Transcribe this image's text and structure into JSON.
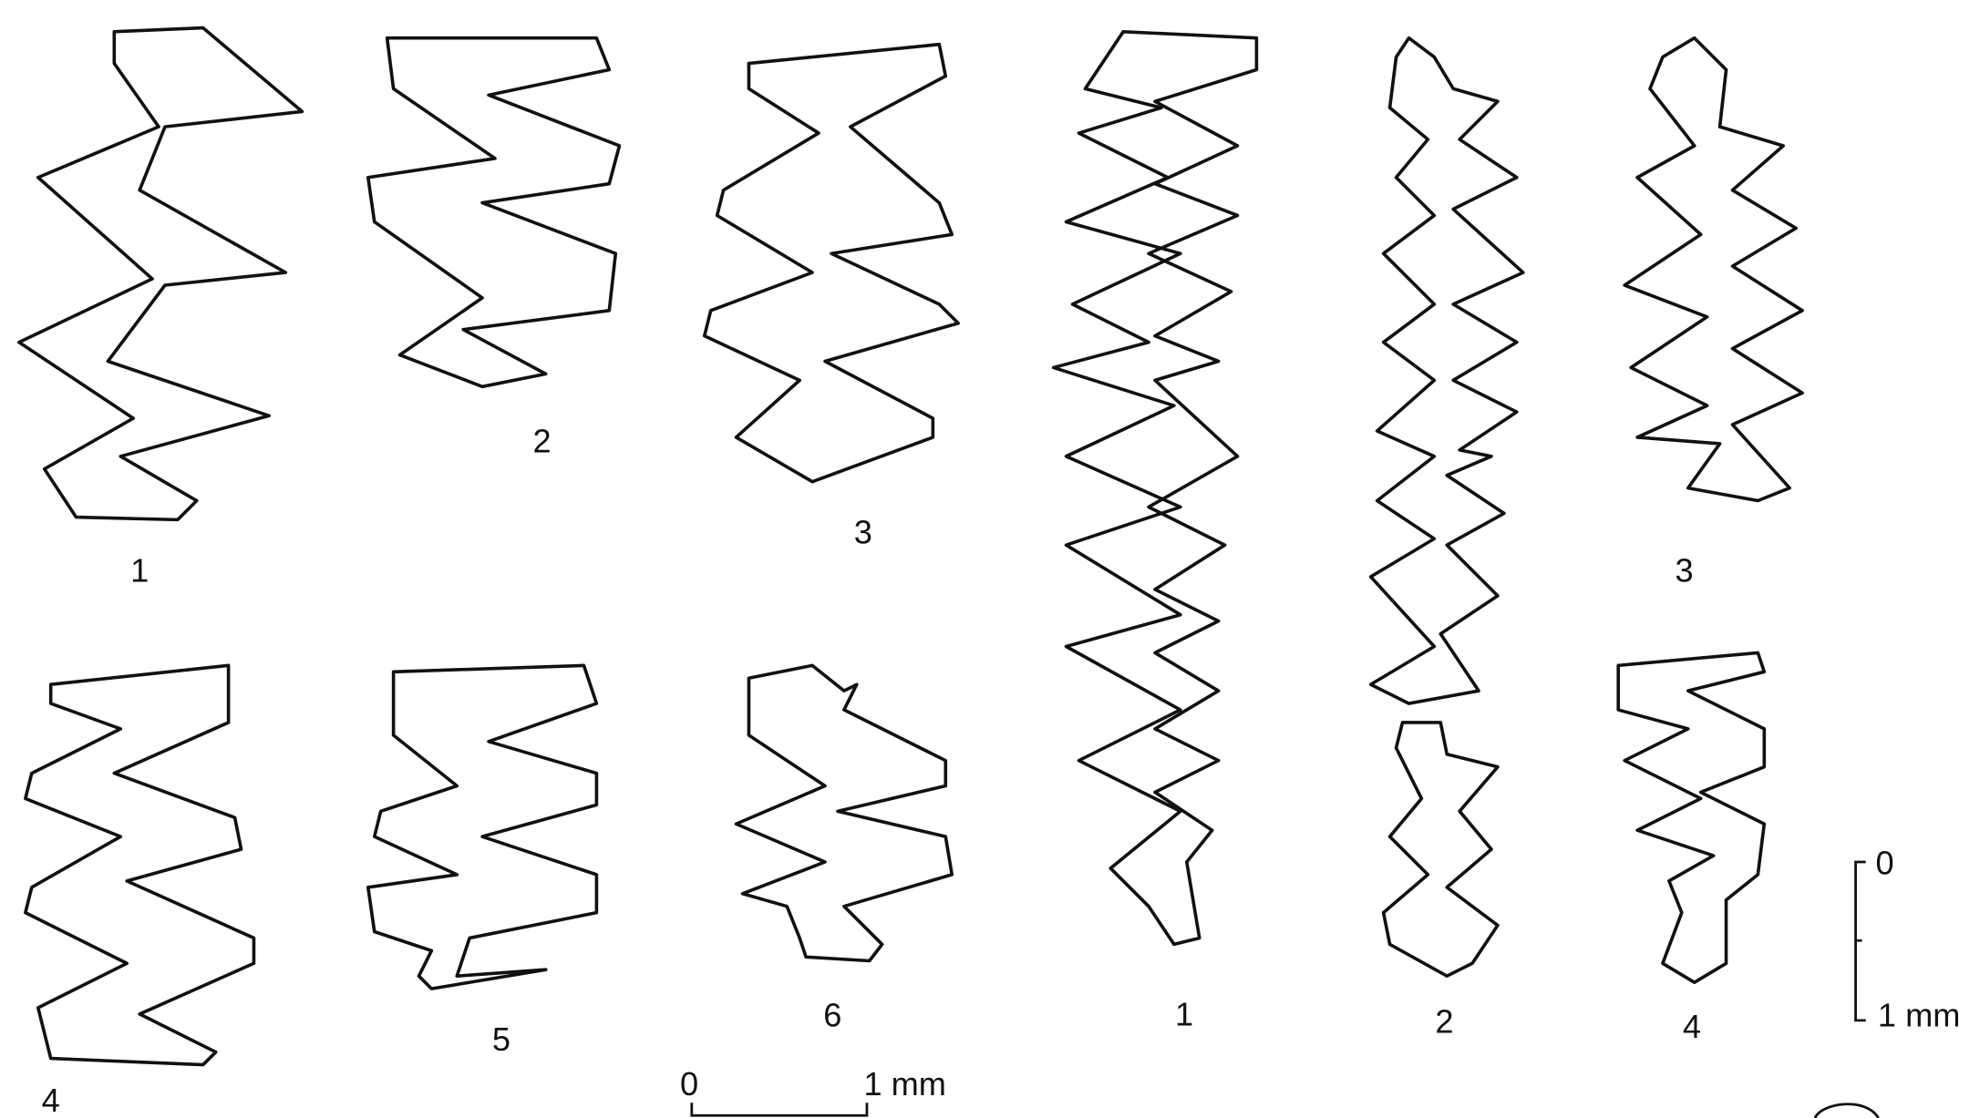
{
  "left_group": {
    "labels": [
      "1",
      "2",
      "3",
      "4",
      "5",
      "6"
    ]
  },
  "right_group": {
    "labels": [
      "1",
      "2",
      "3",
      "4"
    ]
  },
  "scale_bar_horizontal": {
    "start": "0",
    "end": "1 mm"
  },
  "scale_bar_vertical": {
    "start": "0",
    "end": "1 mm"
  }
}
